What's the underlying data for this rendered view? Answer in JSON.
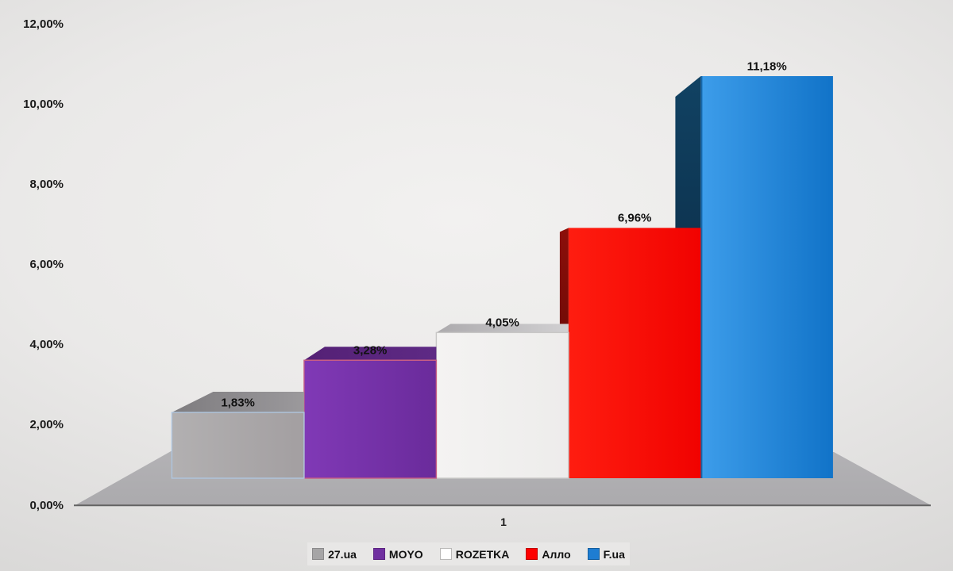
{
  "chart_data": {
    "type": "bar",
    "subtype": "3d-column-perspective",
    "categories": [
      "1"
    ],
    "series": [
      {
        "name": "27.ua",
        "value": 1.83,
        "data_label": "1,83%"
      },
      {
        "name": "MOYO",
        "value": 3.28,
        "data_label": "3,28%"
      },
      {
        "name": "ROZETKA",
        "value": 4.05,
        "data_label": "4,05%"
      },
      {
        "name": "Алло",
        "value": 6.96,
        "data_label": "6,96%"
      },
      {
        "name": "F.ua",
        "value": 11.18,
        "data_label": "11,18%"
      }
    ],
    "ylim": [
      0,
      12
    ],
    "y_ticks": [
      "0,00%",
      "2,00%",
      "4,00%",
      "6,00%",
      "8,00%",
      "10,00%",
      "12,00%"
    ],
    "y_tick_values": [
      0,
      2,
      4,
      6,
      8,
      10,
      12
    ],
    "grid": false,
    "legend_position": "bottom",
    "legend": [
      "27.ua",
      "MOYO",
      "ROZETKA",
      "Алло",
      "F.ua"
    ]
  },
  "colors": {
    "series": [
      {
        "front": [
          "#B2B0B1",
          "#A39FA1"
        ],
        "shade": [
          "#7E7C7F",
          "#9B999C"
        ],
        "stroke": "#AFC5DE",
        "legend": "#A6A5A6",
        "legend_border": "#8B8A8B"
      },
      {
        "front": [
          "#8039B6",
          "#6A2B9B"
        ],
        "shade": [
          "#542075",
          "#5E2A85"
        ],
        "stroke": "#C75E84",
        "legend": "#7030A0",
        "legend_border": "#5C2481"
      },
      {
        "front": [
          "#F4F3F2",
          "#EDECEB"
        ],
        "shade": [
          "#ACAAAD",
          "#D1D0D2"
        ],
        "stroke": "#C8C7C6",
        "legend": "#FFFFFF",
        "legend_border": "#B9B8B7"
      },
      {
        "front": [
          "#FF1D10",
          "#F10200"
        ],
        "shade": [
          "#8C0F0A",
          "#4E0502"
        ],
        "stroke": "",
        "legend": "#FE0000",
        "legend_border": "#C00000"
      },
      {
        "front": [
          "#3D9DEA",
          "#1173C8"
        ],
        "shade": [
          "#114263",
          "#072036"
        ],
        "stroke": "",
        "legend": "#1E7DD2",
        "legend_border": "#155E9E"
      }
    ],
    "floor": "#ABAAAD",
    "floor_light": "#B3B2B5",
    "axis_line": "#636363",
    "label_text": "#1A1A1A",
    "legend_bg": "#E8E7E6",
    "blue_edge": "#1566A9",
    "purple_accent_line": "#C75E84"
  }
}
